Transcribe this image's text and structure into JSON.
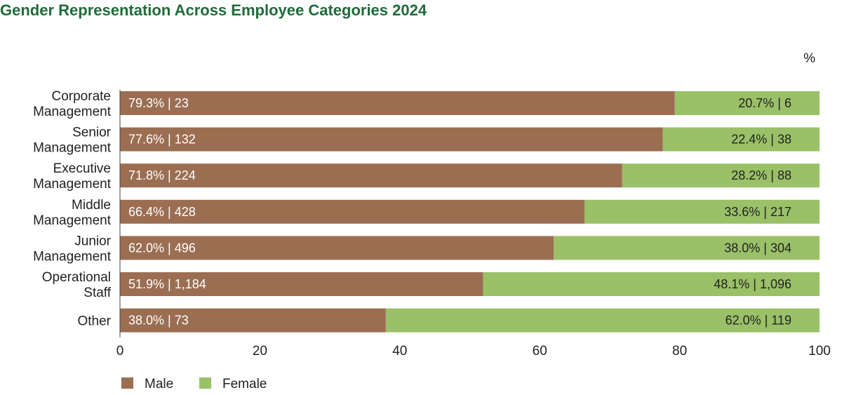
{
  "title": "Gender Representation Across Employee Categories 2024",
  "chart_data": {
    "type": "bar",
    "orientation": "horizontal",
    "stacked": true,
    "unit_label": "%",
    "categories": [
      [
        "Corporate",
        "Management"
      ],
      [
        "Senior",
        "Management"
      ],
      [
        "Executive",
        "Management"
      ],
      [
        "Middle",
        "Management"
      ],
      [
        "Junior",
        "Management"
      ],
      [
        "Operational",
        "Staff"
      ],
      [
        "Other"
      ]
    ],
    "series": [
      {
        "name": "Male",
        "color": "#9b6e52",
        "values": [
          79.3,
          77.6,
          71.8,
          66.4,
          62.0,
          51.9,
          38.0
        ],
        "labels": [
          "79.3% | 23",
          "77.6% | 132",
          "71.8% | 224",
          "66.4% | 428",
          "62.0% | 496",
          "51.9% | 1,184",
          "38.0% | 73"
        ]
      },
      {
        "name": "Female",
        "color": "#9ac068",
        "values": [
          20.7,
          22.4,
          28.2,
          33.6,
          38.0,
          48.1,
          62.0
        ],
        "labels": [
          "20.7% | 6",
          "22.4% | 38",
          "28.2% | 88",
          "33.6% | 217",
          "38.0% | 304",
          "48.1% | 1,096",
          "62.0% | 119"
        ]
      }
    ],
    "xlim": [
      0,
      100
    ],
    "xticks": [
      "0",
      "20",
      "40",
      "60",
      "80",
      "100"
    ],
    "grid": false,
    "legend_position": "bottom-left"
  }
}
